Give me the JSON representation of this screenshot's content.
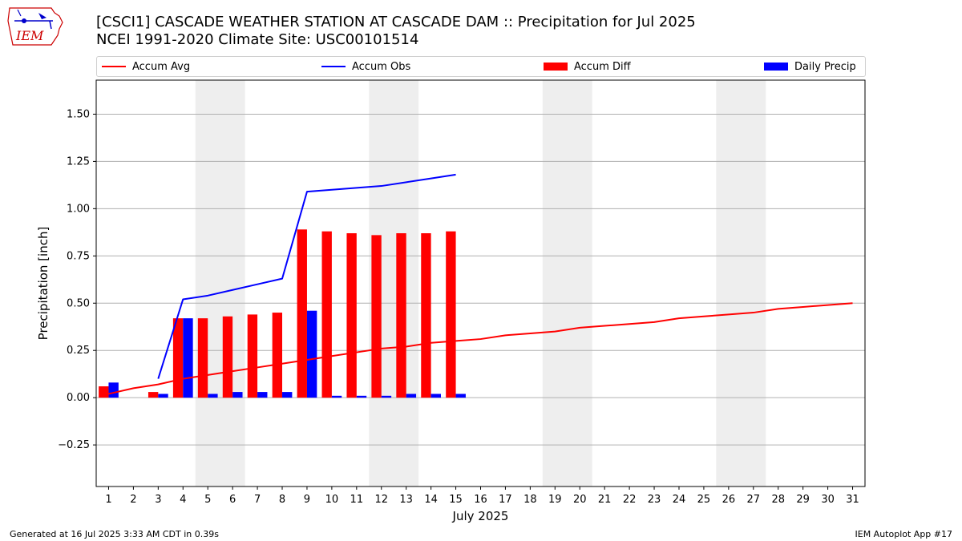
{
  "header": {
    "title_line1": "[CSCI1] CASCADE WEATHER STATION AT CASCADE DAM :: Precipitation for Jul 2025",
    "title_line2": "NCEI 1991-2020 Climate Site: USC00101514",
    "logo_text": "IEM"
  },
  "footer": {
    "generated": "Generated at 16 Jul 2025 3:33 AM CDT in 0.39s",
    "app": "IEM Autoplot App #17"
  },
  "chart_data": {
    "type": "bar",
    "xlabel": "July 2025",
    "ylabel": "Precipitation [inch]",
    "xlim": [
      0.5,
      31.5
    ],
    "ylim": [
      -0.47,
      1.68
    ],
    "yticks": [
      -0.25,
      0.0,
      0.25,
      0.5,
      0.75,
      1.0,
      1.25,
      1.5
    ],
    "ytick_labels": [
      "−0.25",
      "0.00",
      "0.25",
      "0.50",
      "0.75",
      "1.00",
      "1.25",
      "1.50"
    ],
    "x": [
      1,
      2,
      3,
      4,
      5,
      6,
      7,
      8,
      9,
      10,
      11,
      12,
      13,
      14,
      15,
      16,
      17,
      18,
      19,
      20,
      21,
      22,
      23,
      24,
      25,
      26,
      27,
      28,
      29,
      30,
      31
    ],
    "xtick_labels": [
      "1",
      "2",
      "3",
      "4",
      "5",
      "6",
      "7",
      "8",
      "9",
      "10",
      "11",
      "12",
      "13",
      "14",
      "15",
      "16",
      "17",
      "18",
      "19",
      "20",
      "21",
      "22",
      "23",
      "24",
      "25",
      "26",
      "27",
      "28",
      "29",
      "30",
      "31"
    ],
    "weekend_bands": [
      [
        4.5,
        6.5
      ],
      [
        11.5,
        13.5
      ],
      [
        18.5,
        20.5
      ],
      [
        25.5,
        27.5
      ]
    ],
    "grid": "horizontal",
    "legend_position": "top",
    "series": [
      {
        "name": "Accum Avg",
        "kind": "line",
        "color": "#ff0000",
        "x": [
          1,
          2,
          3,
          4,
          5,
          6,
          7,
          8,
          9,
          10,
          11,
          12,
          13,
          14,
          15,
          16,
          17,
          18,
          19,
          20,
          21,
          22,
          23,
          24,
          25,
          26,
          27,
          28,
          29,
          30,
          31
        ],
        "values": [
          0.02,
          0.05,
          0.07,
          0.1,
          0.12,
          0.14,
          0.16,
          0.18,
          0.2,
          0.22,
          0.24,
          0.26,
          0.27,
          0.29,
          0.3,
          0.31,
          0.33,
          0.34,
          0.35,
          0.37,
          0.38,
          0.39,
          0.4,
          0.42,
          0.43,
          0.44,
          0.45,
          0.47,
          0.48,
          0.49,
          0.5
        ]
      },
      {
        "name": "Accum Obs",
        "kind": "line",
        "color": "#0000ff",
        "x": [
          3,
          4,
          5,
          6,
          7,
          8,
          9,
          10,
          11,
          12,
          13,
          14,
          15
        ],
        "values": [
          0.1,
          0.52,
          0.54,
          0.57,
          0.6,
          0.63,
          1.09,
          1.1,
          1.11,
          1.12,
          1.14,
          1.16,
          1.18
        ]
      },
      {
        "name": "Accum Diff",
        "kind": "bar",
        "color": "#ff0000",
        "x": [
          1,
          3,
          4,
          5,
          6,
          7,
          8,
          9,
          10,
          11,
          12,
          13,
          14,
          15
        ],
        "values": [
          0.06,
          0.03,
          0.42,
          0.42,
          0.43,
          0.44,
          0.45,
          0.89,
          0.88,
          0.87,
          0.86,
          0.87,
          0.87,
          0.88
        ]
      },
      {
        "name": "Daily Precip",
        "kind": "bar",
        "color": "#0000ff",
        "x": [
          1,
          3,
          4,
          5,
          6,
          7,
          8,
          9,
          10,
          11,
          12,
          13,
          14,
          15
        ],
        "values": [
          0.08,
          0.02,
          0.42,
          0.02,
          0.03,
          0.03,
          0.03,
          0.46,
          0.01,
          0.01,
          0.01,
          0.02,
          0.02,
          0.02
        ]
      }
    ]
  }
}
